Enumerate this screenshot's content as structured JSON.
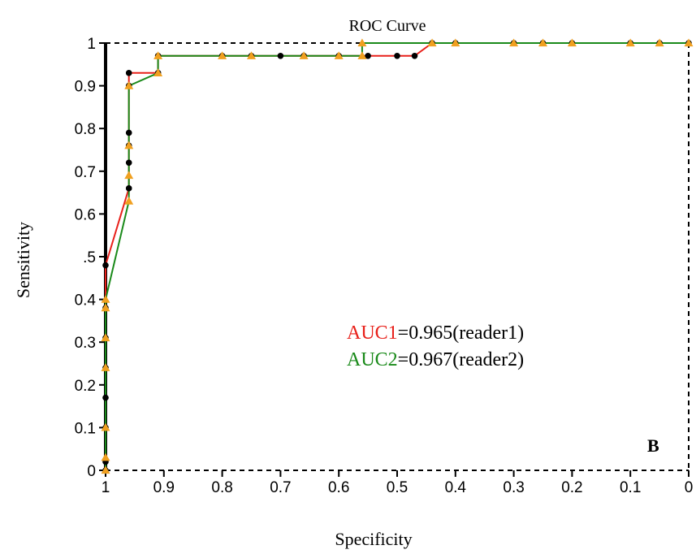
{
  "chart_data": {
    "type": "line",
    "title": "ROC Curve",
    "xlabel": "Specificity",
    "ylabel": "Sensitivity",
    "xlim": [
      1,
      0
    ],
    "ylim": [
      0,
      1
    ],
    "x_ticks": [
      "1",
      "0.9",
      "0.8",
      "0.7",
      "0.6",
      "0.5",
      "0.4",
      "0.3",
      "0.2",
      "0.1",
      "0"
    ],
    "y_ticks": [
      "0",
      "0.1",
      "0.2",
      "0.3",
      "0.4",
      ".5",
      "0.6",
      "0.7",
      "0.8",
      "0.9",
      "1"
    ],
    "grid": false,
    "series": [
      {
        "color": "#e8201a",
        "marker": "circle",
        "marker_color": "#000000",
        "points": [
          [
            1.0,
            0.0
          ],
          [
            1.0,
            0.02
          ],
          [
            1.0,
            0.1
          ],
          [
            1.0,
            0.17
          ],
          [
            1.0,
            0.24
          ],
          [
            1.0,
            0.31
          ],
          [
            1.0,
            0.38
          ],
          [
            1.0,
            0.48
          ],
          [
            0.96,
            0.66
          ],
          [
            0.96,
            0.72
          ],
          [
            0.96,
            0.76
          ],
          [
            0.96,
            0.79
          ],
          [
            0.96,
            0.9
          ],
          [
            0.96,
            0.93
          ],
          [
            0.91,
            0.93
          ],
          [
            0.91,
            0.97
          ],
          [
            0.8,
            0.97
          ],
          [
            0.75,
            0.97
          ],
          [
            0.7,
            0.97
          ],
          [
            0.66,
            0.97
          ],
          [
            0.6,
            0.97
          ],
          [
            0.55,
            0.97
          ],
          [
            0.5,
            0.97
          ],
          [
            0.47,
            0.97
          ],
          [
            0.44,
            1.0
          ],
          [
            0.4,
            1.0
          ],
          [
            0.3,
            1.0
          ],
          [
            0.25,
            1.0
          ],
          [
            0.2,
            1.0
          ],
          [
            0.1,
            1.0
          ],
          [
            0.05,
            1.0
          ],
          [
            0.0,
            1.0
          ]
        ]
      },
      {
        "color": "#1a8a1a",
        "marker": "triangle",
        "marker_color": "#f0a020",
        "points": [
          [
            1.0,
            0.0
          ],
          [
            1.0,
            0.03
          ],
          [
            1.0,
            0.1
          ],
          [
            1.0,
            0.24
          ],
          [
            1.0,
            0.31
          ],
          [
            1.0,
            0.38
          ],
          [
            1.0,
            0.4
          ],
          [
            0.96,
            0.63
          ],
          [
            0.96,
            0.69
          ],
          [
            0.96,
            0.76
          ],
          [
            0.96,
            0.9
          ],
          [
            0.91,
            0.93
          ],
          [
            0.91,
            0.97
          ],
          [
            0.8,
            0.97
          ],
          [
            0.75,
            0.97
          ],
          [
            0.66,
            0.97
          ],
          [
            0.6,
            0.97
          ],
          [
            0.56,
            0.97
          ],
          [
            0.56,
            1.0
          ],
          [
            0.44,
            1.0
          ],
          [
            0.4,
            1.0
          ],
          [
            0.3,
            1.0
          ],
          [
            0.25,
            1.0
          ],
          [
            0.2,
            1.0
          ],
          [
            0.1,
            1.0
          ],
          [
            0.05,
            1.0
          ],
          [
            0.0,
            1.0
          ]
        ]
      }
    ],
    "annotations": [
      {
        "prefix": "AUC1",
        "prefix_color": "#e8201a",
        "text": "=0.965(reader1)"
      },
      {
        "prefix": "AUC2",
        "prefix_color": "#1a8a1a",
        "text": "=0.967(reader2)"
      }
    ],
    "panel_label": "B"
  }
}
